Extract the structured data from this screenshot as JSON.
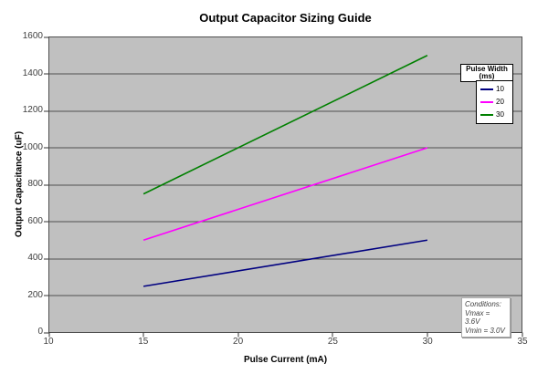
{
  "chart_data": {
    "type": "line",
    "title": "Output Capacitor Sizing Guide",
    "xlabel": "Pulse Current (mA)",
    "ylabel": "Output Capacitance (uF)",
    "xlim": [
      10,
      35
    ],
    "ylim": [
      0,
      1600
    ],
    "xticks": [
      10,
      15,
      20,
      25,
      30,
      35
    ],
    "yticks": [
      0,
      200,
      400,
      600,
      800,
      1000,
      1200,
      1400,
      1600
    ],
    "grid": "horizontal-only",
    "plot_bg_color": "#c0c0c0",
    "gridline_color": "#4f4f4f",
    "axis_color": "#333333",
    "legend": {
      "position": "inside-top-right",
      "title_line1": "Pulse Width",
      "title_line2": "(ms)"
    },
    "series": [
      {
        "name": "10",
        "color": "#000080",
        "x": [
          15,
          30
        ],
        "y": [
          250,
          500
        ]
      },
      {
        "name": "20",
        "color": "#ff00ff",
        "x": [
          15,
          30
        ],
        "y": [
          500,
          1000
        ]
      },
      {
        "name": "30",
        "color": "#008000",
        "x": [
          15,
          30
        ],
        "y": [
          750,
          1500
        ]
      }
    ],
    "annotation": {
      "line1": "Conditions:",
      "line2": "Vmax = 3.6V",
      "line3": "Vmin = 3.0V"
    }
  }
}
